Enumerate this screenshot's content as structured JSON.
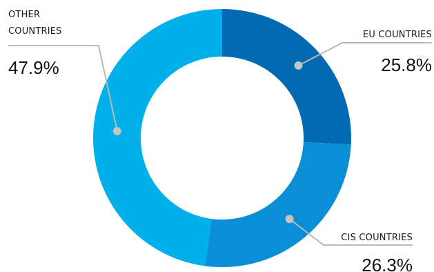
{
  "chart_data": {
    "type": "pie",
    "variant": "donut",
    "categories": [
      "EU COUNTRIES",
      "CIS COUNTRIES",
      "OTHER COUNTRIES"
    ],
    "values": [
      25.8,
      26.3,
      47.9
    ],
    "value_labels": [
      "25.8%",
      "26.3%",
      "47.9%"
    ],
    "colors": [
      "#0269b3",
      "#0a8fd6",
      "#00b0ea"
    ],
    "legend": "none",
    "data_labels": "outside with leader lines",
    "start_angle": "12 o'clock, clockwise"
  }
}
